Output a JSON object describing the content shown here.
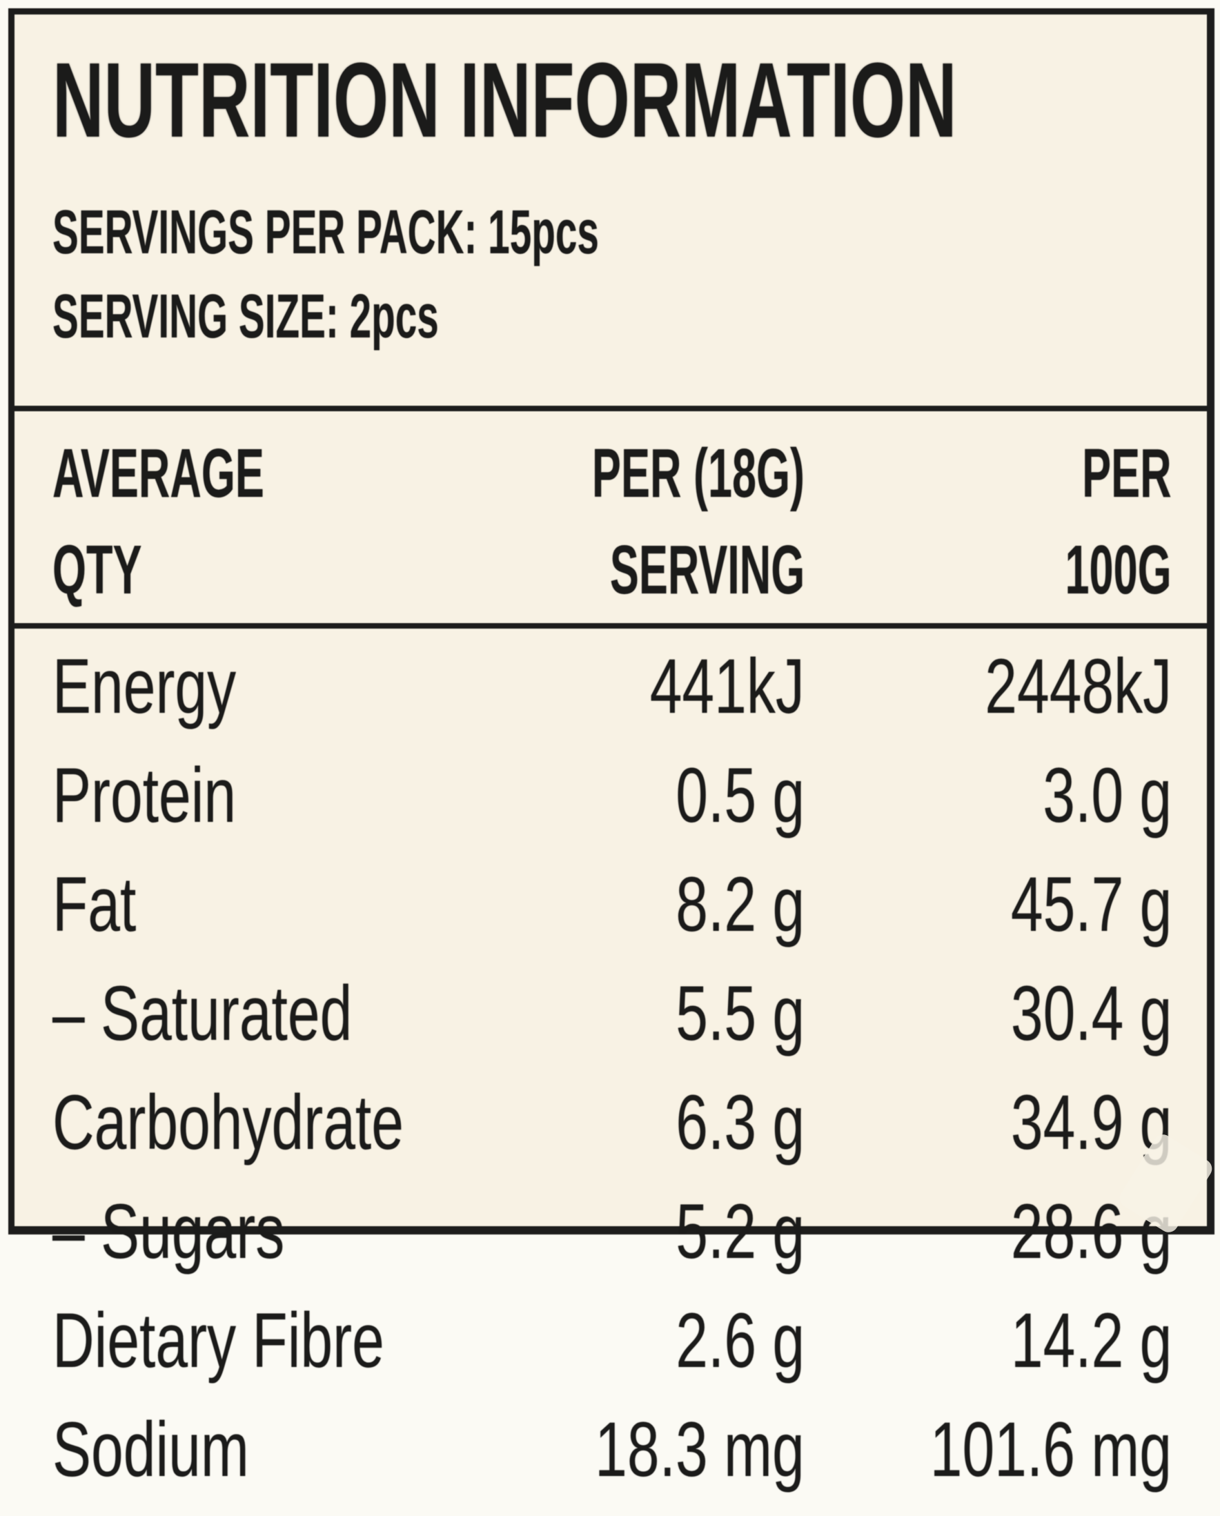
{
  "label": {
    "title": "NUTRITION INFORMATION",
    "servings_per_pack": "SERVINGS PER PACK: 15pcs",
    "serving_size": "SERVING SIZE: 2pcs",
    "header": {
      "col1_line1": "AVERAGE",
      "col1_line2": "QTY",
      "col2_line1": "PER (18G)",
      "col2_line2": "SERVING",
      "col3_line1": "PER",
      "col3_line2": "100G"
    },
    "rows": [
      {
        "label": "Energy",
        "per_serving": "441kJ",
        "per_100g": "2448kJ"
      },
      {
        "label": "Protein",
        "per_serving": "0.5 g",
        "per_100g": "3.0 g"
      },
      {
        "label": "Fat",
        "per_serving": "8.2 g",
        "per_100g": "45.7 g"
      },
      {
        "label": "– Saturated",
        "per_serving": "5.5 g",
        "per_100g": "30.4 g"
      },
      {
        "label": "Carbohydrate",
        "per_serving": "6.3 g",
        "per_100g": "34.9 g"
      },
      {
        "label": "– Sugars",
        "per_serving": "5.2 g",
        "per_100g": "28.6 g"
      },
      {
        "label": "Dietary Fibre",
        "per_serving": "2.6 g",
        "per_100g": "14.2 g"
      },
      {
        "label": "Sodium",
        "per_serving": "18.3 mg",
        "per_100g": "101.6 mg"
      }
    ],
    "colors": {
      "page_background": "#fbfaf4",
      "panel_background": "#f8f2e4",
      "ink": "#1b1b1a"
    }
  }
}
